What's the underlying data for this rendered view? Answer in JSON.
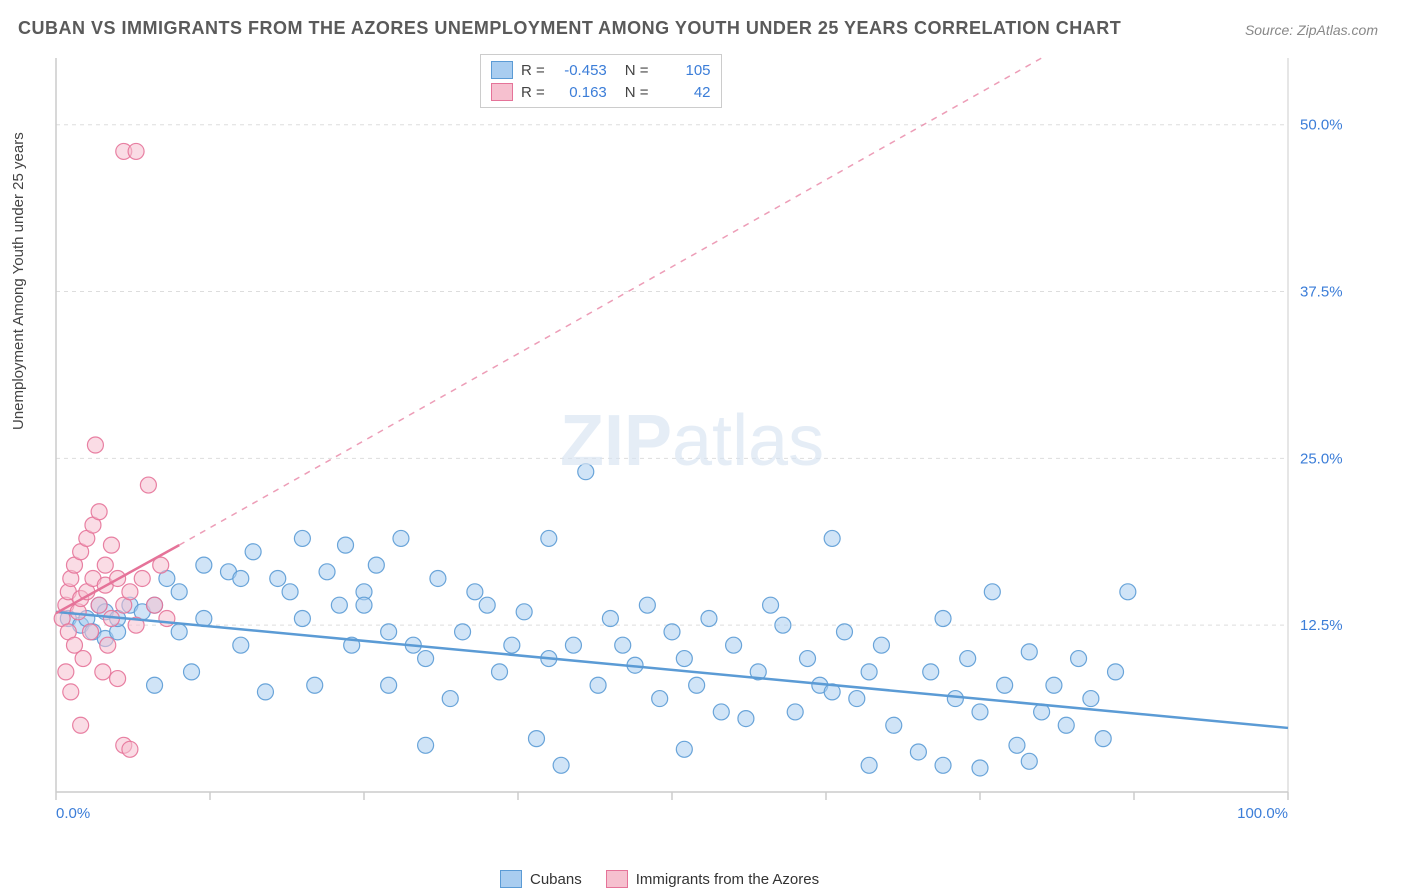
{
  "title": "CUBAN VS IMMIGRANTS FROM THE AZORES UNEMPLOYMENT AMONG YOUTH UNDER 25 YEARS CORRELATION CHART",
  "source": "Source: ZipAtlas.com",
  "y_axis_label": "Unemployment Among Youth under 25 years",
  "watermark_bold": "ZIP",
  "watermark_thin": "atlas",
  "chart": {
    "type": "scatter",
    "xlim": [
      0,
      100
    ],
    "ylim": [
      0,
      55
    ],
    "x_ticks": [
      0,
      12.5,
      25,
      37.5,
      50,
      62.5,
      75,
      87.5,
      100
    ],
    "x_tick_labels": {
      "0": "0.0%",
      "100": "100.0%"
    },
    "y_ticks": [
      12.5,
      25,
      37.5,
      50
    ],
    "y_tick_labels": {
      "12.5": "12.5%",
      "25": "25.0%",
      "37.5": "37.5%",
      "50": "50.0%"
    },
    "grid_color": "#dddddd",
    "axis_color": "#cccccc",
    "background_color": "#ffffff",
    "marker_radius": 8,
    "marker_opacity": 0.55,
    "series": [
      {
        "name": "Cubans",
        "color_fill": "#a9cdf0",
        "color_stroke": "#5b9bd5",
        "R": "-0.453",
        "N": "105",
        "trend": {
          "x1": 0,
          "y1": 13.5,
          "x2": 100,
          "y2": 4.8,
          "dash_x2": 100,
          "dash_y2": 4.8
        },
        "points": [
          [
            1,
            13
          ],
          [
            2,
            12.5
          ],
          [
            2.5,
            13
          ],
          [
            3,
            12
          ],
          [
            3.5,
            14
          ],
          [
            4,
            11.5
          ],
          [
            4,
            13.5
          ],
          [
            5,
            12
          ],
          [
            5,
            13
          ],
          [
            6,
            14
          ],
          [
            7,
            13.5
          ],
          [
            8,
            14
          ],
          [
            8,
            8
          ],
          [
            9,
            16
          ],
          [
            10,
            12
          ],
          [
            10,
            15
          ],
          [
            11,
            9
          ],
          [
            12,
            13
          ],
          [
            12,
            17
          ],
          [
            14,
            16.5
          ],
          [
            15,
            11
          ],
          [
            15,
            16
          ],
          [
            16,
            18
          ],
          [
            17,
            7.5
          ],
          [
            18,
            16
          ],
          [
            19,
            15
          ],
          [
            20,
            13
          ],
          [
            20,
            19
          ],
          [
            21,
            8
          ],
          [
            22,
            16.5
          ],
          [
            23,
            14
          ],
          [
            23.5,
            18.5
          ],
          [
            24,
            11
          ],
          [
            25,
            15
          ],
          [
            25,
            14
          ],
          [
            26,
            17
          ],
          [
            27,
            8
          ],
          [
            27,
            12
          ],
          [
            28,
            19
          ],
          [
            29,
            11
          ],
          [
            30,
            3.5
          ],
          [
            30,
            10
          ],
          [
            31,
            16
          ],
          [
            32,
            7
          ],
          [
            33,
            12
          ],
          [
            34,
            15
          ],
          [
            35,
            14
          ],
          [
            36,
            9
          ],
          [
            37,
            11
          ],
          [
            38,
            13.5
          ],
          [
            39,
            4
          ],
          [
            40,
            19
          ],
          [
            40,
            10
          ],
          [
            41,
            2
          ],
          [
            42,
            11
          ],
          [
            43,
            24
          ],
          [
            44,
            8
          ],
          [
            45,
            13
          ],
          [
            46,
            11
          ],
          [
            47,
            9.5
          ],
          [
            48,
            14
          ],
          [
            49,
            7
          ],
          [
            50,
            12
          ],
          [
            51,
            10
          ],
          [
            52,
            8
          ],
          [
            53,
            13
          ],
          [
            54,
            6
          ],
          [
            55,
            11
          ],
          [
            56,
            5.5
          ],
          [
            57,
            9
          ],
          [
            58,
            14
          ],
          [
            59,
            12.5
          ],
          [
            60,
            6
          ],
          [
            61,
            10
          ],
          [
            62,
            8
          ],
          [
            63,
            19
          ],
          [
            64,
            12
          ],
          [
            65,
            7
          ],
          [
            66,
            9
          ],
          [
            67,
            11
          ],
          [
            68,
            5
          ],
          [
            70,
            3
          ],
          [
            71,
            9
          ],
          [
            72,
            13
          ],
          [
            73,
            7
          ],
          [
            74,
            10
          ],
          [
            75,
            6
          ],
          [
            76,
            15
          ],
          [
            77,
            8
          ],
          [
            78,
            3.5
          ],
          [
            79,
            10.5
          ],
          [
            80,
            6
          ],
          [
            81,
            8
          ],
          [
            82,
            5
          ],
          [
            83,
            10
          ],
          [
            84,
            7
          ],
          [
            85,
            4
          ],
          [
            86,
            9
          ],
          [
            87,
            15
          ],
          [
            79,
            2.3
          ],
          [
            75,
            1.8
          ],
          [
            66,
            2
          ],
          [
            63,
            7.5
          ],
          [
            51,
            3.2
          ],
          [
            72,
            2
          ]
        ]
      },
      {
        "name": "Immigrants from the Azores",
        "color_fill": "#f6c0cf",
        "color_stroke": "#e57399",
        "R": "0.163",
        "N": "42",
        "trend": {
          "x1": 0,
          "y1": 13.4,
          "x2": 10,
          "y2": 18.5,
          "dash_x2": 80,
          "dash_y2": 55
        },
        "points": [
          [
            0.5,
            13
          ],
          [
            0.8,
            14
          ],
          [
            1,
            12
          ],
          [
            1,
            15
          ],
          [
            1.2,
            16
          ],
          [
            1.5,
            11
          ],
          [
            1.5,
            17
          ],
          [
            1.8,
            13.5
          ],
          [
            2,
            14.5
          ],
          [
            2,
            18
          ],
          [
            2.2,
            10
          ],
          [
            2.5,
            15
          ],
          [
            2.5,
            19
          ],
          [
            2.8,
            12
          ],
          [
            3,
            16
          ],
          [
            3,
            20
          ],
          [
            3.2,
            26
          ],
          [
            3.5,
            14
          ],
          [
            3.5,
            21
          ],
          [
            3.8,
            9
          ],
          [
            4,
            15.5
          ],
          [
            4,
            17
          ],
          [
            4.2,
            11
          ],
          [
            4.5,
            13
          ],
          [
            4.5,
            18.5
          ],
          [
            5,
            16
          ],
          [
            5,
            8.5
          ],
          [
            5.5,
            14
          ],
          [
            5.5,
            3.5
          ],
          [
            6,
            15
          ],
          [
            6,
            3.2
          ],
          [
            6.5,
            12.5
          ],
          [
            7,
            16
          ],
          [
            7.5,
            23
          ],
          [
            8,
            14
          ],
          [
            8.5,
            17
          ],
          [
            9,
            13
          ],
          [
            0.8,
            9
          ],
          [
            1.2,
            7.5
          ],
          [
            2,
            5
          ],
          [
            5.5,
            48
          ],
          [
            6.5,
            48
          ]
        ]
      }
    ]
  },
  "legend_bottom": [
    {
      "label": "Cubans",
      "fill": "#a9cdf0",
      "stroke": "#5b9bd5"
    },
    {
      "label": "Immigrants from the Azores",
      "fill": "#f6c0cf",
      "stroke": "#e57399"
    }
  ]
}
